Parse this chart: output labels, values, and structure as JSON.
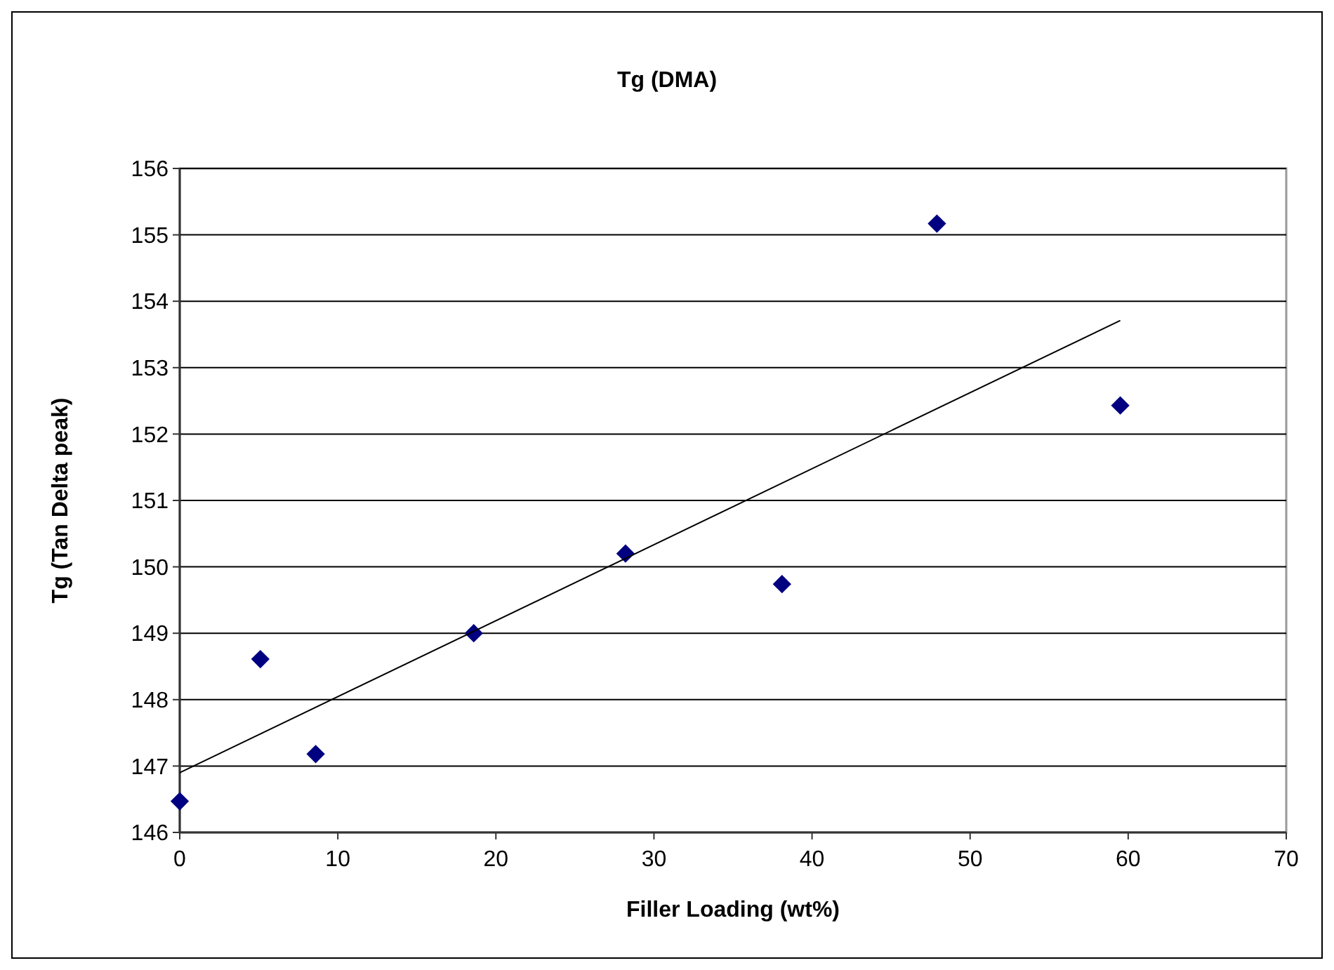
{
  "chart_data": {
    "type": "scatter",
    "title": "Tg (DMA)",
    "xlabel": "Filler Loading (wt%)",
    "ylabel": "Tg (Tan Delta peak)",
    "xlim": [
      0,
      70
    ],
    "xticks": [
      0,
      10,
      20,
      30,
      40,
      50,
      60,
      70
    ],
    "ylim": [
      146,
      156
    ],
    "yticks": [
      146,
      147,
      148,
      149,
      150,
      151,
      152,
      153,
      154,
      155,
      156
    ],
    "grid": "y",
    "marker": "diamond",
    "series": [
      {
        "color": "#000080",
        "x": [
          0,
          5.1,
          8.6,
          18.6,
          28.2,
          38.1,
          47.9,
          59.5
        ],
        "values": [
          146.47,
          148.61,
          147.18,
          149.0,
          150.2,
          149.74,
          155.17,
          152.43
        ]
      },
      {
        "type": "line",
        "color": "#000000",
        "marker": "none",
        "line_style": "solid",
        "x": [
          0,
          59.5
        ],
        "values": [
          146.9,
          153.71
        ]
      }
    ]
  }
}
